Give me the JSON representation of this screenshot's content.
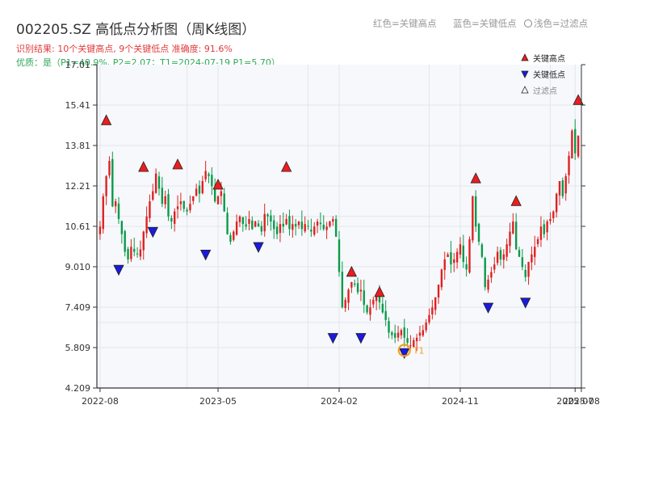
{
  "header": {
    "title": "002205.SZ 高低点分析图（周K线图）",
    "result_line": "识别结果: 10个关键高点, 9个关键低点   准确度: 91.6%",
    "quality_line": "优质：是（P1=40.9%, P2=2.07；T1=2024-07-19 P1=5.70）",
    "legend_red": "红色=关键高点",
    "legend_blue": "蓝色=关键低点",
    "legend_light": "浅色=过滤点"
  },
  "colors": {
    "up": "#e02020",
    "down": "#0a9a4a",
    "high_marker": "#ee1c1c",
    "low_marker": "#1a1adf",
    "t1_marker": "#f0a020",
    "plot_bg": "#f6f8fb",
    "grid": "#e2e6ec",
    "axis": "#333333"
  },
  "chart_data": {
    "type": "candlestick",
    "ylim": [
      4.209,
      17.01
    ],
    "y_ticks": [
      "4.209",
      "5.809",
      "7.409",
      "9.010",
      "10.61",
      "12.21",
      "13.81",
      "15.41",
      "17.01"
    ],
    "x_ticks": [
      {
        "label": "2022-08",
        "week": 0
      },
      {
        "label": "2023-05",
        "week": 38
      },
      {
        "label": "2024-02",
        "week": 77
      },
      {
        "label": "2024-11",
        "week": 116
      },
      {
        "label": "2025-07",
        "week": 153
      },
      {
        "label": "2025-08",
        "week": 155
      }
    ],
    "legend": [
      {
        "label": "关键高点",
        "marker": "up-triangle"
      },
      {
        "label": "关键低点",
        "marker": "down-triangle"
      },
      {
        "label": "过滤点",
        "marker": "hollow-triangle"
      }
    ],
    "weekly_close_approx": [
      10.6,
      11.8,
      12.6,
      13.2,
      11.4,
      11.6,
      10.9,
      10.3,
      9.6,
      9.3,
      9.8,
      9.6,
      9.5,
      9.7,
      10.4,
      11.0,
      11.6,
      12.0,
      12.7,
      12.1,
      11.5,
      11.8,
      11.0,
      10.8,
      11.2,
      11.4,
      11.6,
      11.3,
      11.2,
      11.5,
      11.8,
      12.1,
      11.9,
      12.4,
      12.8,
      12.6,
      12.2,
      11.6,
      11.8,
      12.0,
      11.2,
      10.3,
      10.0,
      10.4,
      10.8,
      11.0,
      10.7,
      10.6,
      10.9,
      10.5,
      10.8,
      10.6,
      10.4,
      11.1,
      11.0,
      10.8,
      10.5,
      10.3,
      10.7,
      10.6,
      10.9,
      10.5,
      10.7,
      10.6,
      10.8,
      10.5,
      10.7,
      10.6,
      10.4,
      10.6,
      10.8,
      10.7,
      10.5,
      10.6,
      10.8,
      10.9,
      10.2,
      8.8,
      7.4,
      7.7,
      8.1,
      8.4,
      8.3,
      8.0,
      8.1,
      7.5,
      7.2,
      7.4,
      7.7,
      7.9,
      7.6,
      7.2,
      6.9,
      6.4,
      6.3,
      6.2,
      6.4,
      6.5,
      6.2,
      6.0,
      5.9,
      6.1,
      6.2,
      6.4,
      6.5,
      6.8,
      7.1,
      7.4,
      7.8,
      8.3,
      8.9,
      9.3,
      9.5,
      9.1,
      9.3,
      9.6,
      9.9,
      9.2,
      8.9,
      10.1,
      11.8,
      10.6,
      10.0,
      9.4,
      8.2,
      8.5,
      8.8,
      9.1,
      9.6,
      9.3,
      9.5,
      9.9,
      10.4,
      10.8,
      9.7,
      9.4,
      9.0,
      8.6,
      9.2,
      9.5,
      9.8,
      10.1,
      10.6,
      10.3,
      10.8,
      10.9,
      11.2,
      11.9,
      12.4,
      11.8,
      12.6,
      13.4,
      14.4,
      13.5,
      14.2
    ],
    "key_highs": [
      {
        "week": 2,
        "price": 14.6
      },
      {
        "week": 14,
        "price": 12.75
      },
      {
        "week": 25,
        "price": 12.85
      },
      {
        "week": 38,
        "price": 12.05
      },
      {
        "week": 60,
        "price": 12.75
      },
      {
        "week": 81,
        "price": 8.6
      },
      {
        "week": 90,
        "price": 7.8
      },
      {
        "week": 121,
        "price": 12.3
      },
      {
        "week": 134,
        "price": 11.4
      },
      {
        "week": 154,
        "price": 15.4
      }
    ],
    "key_lows": [
      {
        "week": 6,
        "price": 9.1
      },
      {
        "week": 17,
        "price": 10.6
      },
      {
        "week": 34,
        "price": 9.7
      },
      {
        "week": 51,
        "price": 10.0
      },
      {
        "week": 75,
        "price": 6.4
      },
      {
        "week": 84,
        "price": 6.4
      },
      {
        "week": 98,
        "price": 5.8
      },
      {
        "week": 125,
        "price": 7.6
      },
      {
        "week": 137,
        "price": 7.8
      }
    ],
    "t1": {
      "week": 98,
      "price": 5.7,
      "label": "T1"
    }
  }
}
